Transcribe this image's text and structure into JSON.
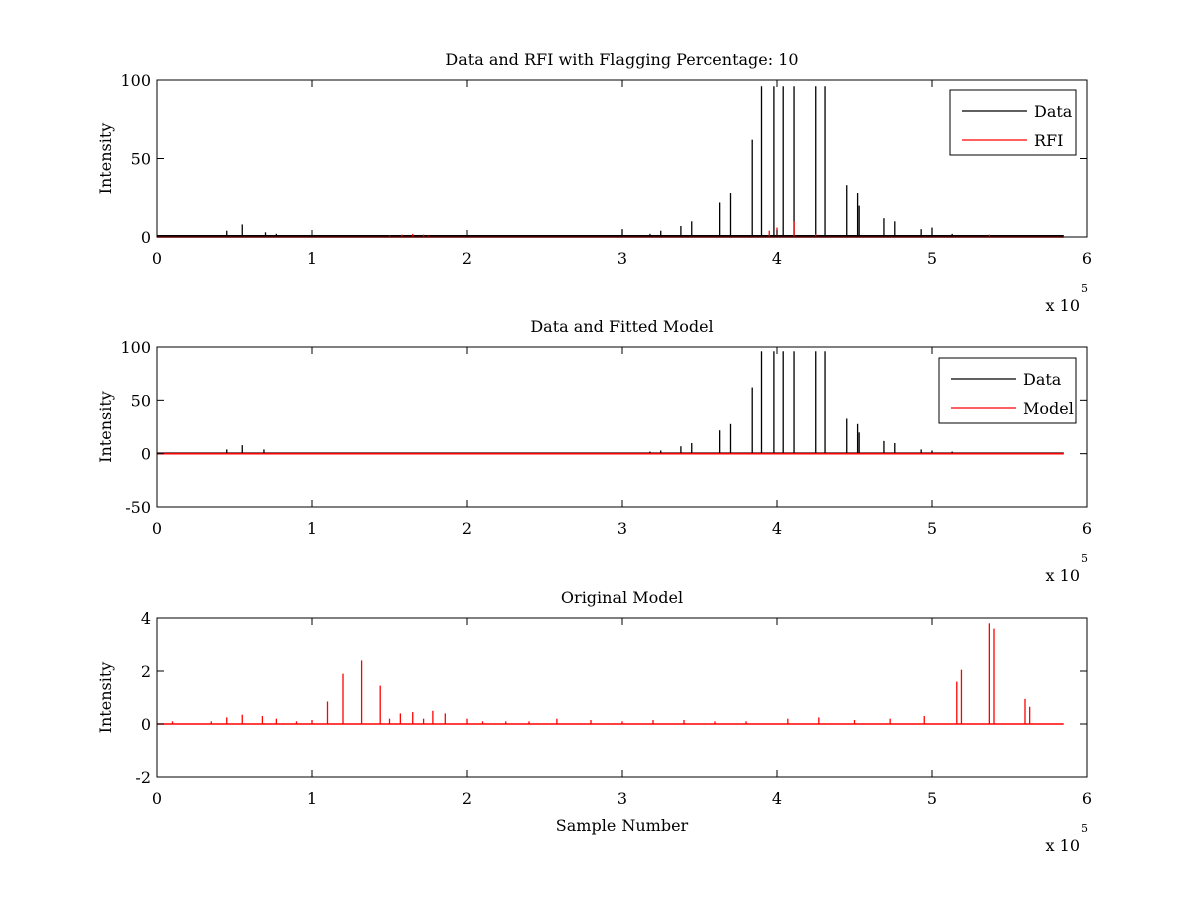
{
  "chart_data": [
    {
      "type": "line",
      "title": "Data and RFI with Flagging Percentage: 10",
      "xlabel": "",
      "ylabel": "Intensity",
      "xlim": [
        0,
        6
      ],
      "ylim": [
        0,
        100
      ],
      "xticks": [
        0,
        1,
        2,
        3,
        4,
        5,
        6
      ],
      "yticks": [
        0,
        50,
        100
      ],
      "x_exponent_label": "x 10",
      "x_exponent_power": "5",
      "x_unit_note": "sample number in units of 10^5",
      "legend": {
        "placement": "top-right",
        "entries": [
          {
            "label": "Data",
            "color": "#000000"
          },
          {
            "label": "RFI",
            "color": "#ff0000"
          }
        ]
      },
      "series": [
        {
          "name": "Data",
          "color": "#000000",
          "baseline": 0.8,
          "spikes": [
            [
              0.25,
              1
            ],
            [
              0.45,
              4
            ],
            [
              0.55,
              8
            ],
            [
              0.7,
              3
            ],
            [
              0.77,
              2
            ],
            [
              1.0,
              1
            ],
            [
              1.6,
              1
            ],
            [
              2.5,
              1
            ],
            [
              3.0,
              5
            ],
            [
              3.18,
              2
            ],
            [
              3.25,
              4
            ],
            [
              3.38,
              7
            ],
            [
              3.45,
              10
            ],
            [
              3.63,
              22
            ],
            [
              3.7,
              28
            ],
            [
              3.84,
              62
            ],
            [
              3.9,
              96
            ],
            [
              3.98,
              96
            ],
            [
              4.04,
              96
            ],
            [
              4.11,
              96
            ],
            [
              4.25,
              96
            ],
            [
              4.31,
              96
            ],
            [
              4.45,
              33
            ],
            [
              4.52,
              28
            ],
            [
              4.53,
              20
            ],
            [
              4.69,
              12
            ],
            [
              4.76,
              10
            ],
            [
              4.93,
              5
            ],
            [
              5.0,
              6
            ],
            [
              5.13,
              2
            ],
            [
              5.2,
              1
            ],
            [
              5.5,
              1
            ],
            [
              5.8,
              1
            ]
          ]
        },
        {
          "name": "RFI",
          "color": "#ff0000",
          "baseline": 0,
          "spikes": [
            [
              1.5,
              1
            ],
            [
              1.58,
              1.5
            ],
            [
              1.65,
              2
            ],
            [
              1.72,
              1.5
            ],
            [
              1.75,
              1
            ],
            [
              3.95,
              4
            ],
            [
              4.0,
              6
            ],
            [
              4.11,
              10
            ],
            [
              4.25,
              2
            ],
            [
              5.37,
              1.5
            ]
          ]
        }
      ]
    },
    {
      "type": "line",
      "title": "Data and Fitted Model",
      "xlabel": "",
      "ylabel": "Intensity",
      "xlim": [
        0,
        6
      ],
      "ylim": [
        -50,
        100
      ],
      "xticks": [
        0,
        1,
        2,
        3,
        4,
        5,
        6
      ],
      "yticks": [
        -50,
        0,
        50,
        100
      ],
      "x_exponent_label": "x 10",
      "x_exponent_power": "5",
      "x_unit_note": "sample number in units of 10^5",
      "legend": {
        "placement": "top-right",
        "entries": [
          {
            "label": "Data",
            "color": "#000000"
          },
          {
            "label": "Model",
            "color": "#ff0000"
          }
        ]
      },
      "series": [
        {
          "name": "Data",
          "color": "#000000",
          "baseline": 0.5,
          "spikes": [
            [
              0.45,
              4
            ],
            [
              0.55,
              8
            ],
            [
              0.69,
              4
            ],
            [
              3.18,
              2
            ],
            [
              3.25,
              3
            ],
            [
              3.38,
              7
            ],
            [
              3.45,
              10
            ],
            [
              3.63,
              22
            ],
            [
              3.7,
              28
            ],
            [
              3.84,
              62
            ],
            [
              3.9,
              96
            ],
            [
              3.98,
              96
            ],
            [
              4.04,
              96
            ],
            [
              4.11,
              96
            ],
            [
              4.25,
              96
            ],
            [
              4.31,
              96
            ],
            [
              4.45,
              33
            ],
            [
              4.52,
              28
            ],
            [
              4.53,
              20
            ],
            [
              4.69,
              12
            ],
            [
              4.76,
              10
            ],
            [
              4.93,
              4
            ],
            [
              5.0,
              3
            ],
            [
              5.13,
              2
            ]
          ]
        },
        {
          "name": "Model",
          "color": "#ff0000",
          "baseline": 0,
          "spikes": []
        }
      ]
    },
    {
      "type": "line",
      "title": "Original Model",
      "xlabel": "Sample Number",
      "ylabel": "Intensity",
      "xlim": [
        0,
        6
      ],
      "ylim": [
        -2,
        4
      ],
      "xticks": [
        0,
        1,
        2,
        3,
        4,
        5,
        6
      ],
      "yticks": [
        -2,
        0,
        2,
        4
      ],
      "x_exponent_label": "x 10",
      "x_exponent_power": "5",
      "x_unit_note": "sample number in units of 10^5",
      "series": [
        {
          "name": "Model",
          "color": "#ff0000",
          "baseline": 0,
          "spikes": [
            [
              0.1,
              0.1
            ],
            [
              0.35,
              0.1
            ],
            [
              0.45,
              0.25
            ],
            [
              0.55,
              0.35
            ],
            [
              0.68,
              0.3
            ],
            [
              0.77,
              0.2
            ],
            [
              0.9,
              0.1
            ],
            [
              1.0,
              0.15
            ],
            [
              1.1,
              0.85
            ],
            [
              1.2,
              1.9
            ],
            [
              1.32,
              2.4
            ],
            [
              1.44,
              1.45
            ],
            [
              1.5,
              0.2
            ],
            [
              1.57,
              0.4
            ],
            [
              1.65,
              0.45
            ],
            [
              1.72,
              0.2
            ],
            [
              1.78,
              0.5
            ],
            [
              1.86,
              0.4
            ],
            [
              2.0,
              0.2
            ],
            [
              2.1,
              0.1
            ],
            [
              2.25,
              0.1
            ],
            [
              2.4,
              0.1
            ],
            [
              2.58,
              0.2
            ],
            [
              2.8,
              0.15
            ],
            [
              3.0,
              0.1
            ],
            [
              3.2,
              0.15
            ],
            [
              3.4,
              0.15
            ],
            [
              3.6,
              0.1
            ],
            [
              3.8,
              0.1
            ],
            [
              4.07,
              0.2
            ],
            [
              4.27,
              0.25
            ],
            [
              4.5,
              0.15
            ],
            [
              4.73,
              0.2
            ],
            [
              4.95,
              0.3
            ],
            [
              5.16,
              1.6
            ],
            [
              5.19,
              2.05
            ],
            [
              5.37,
              3.8
            ],
            [
              5.4,
              3.6
            ],
            [
              5.6,
              0.95
            ],
            [
              5.63,
              0.65
            ]
          ]
        }
      ]
    }
  ]
}
